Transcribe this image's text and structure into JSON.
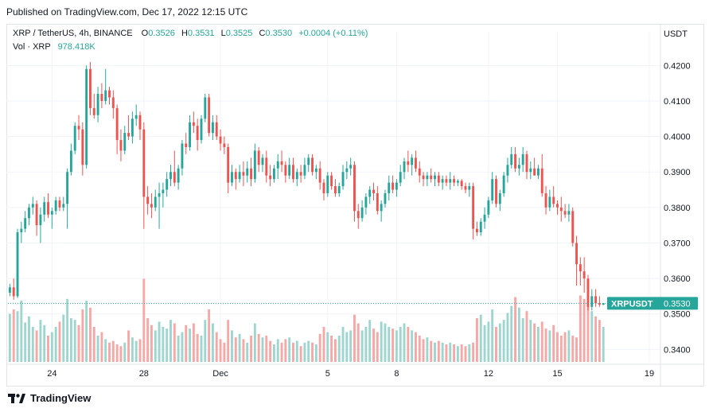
{
  "header": {
    "published": "Published on TradingView.com, Dec 17, 2022 12:15 UTC"
  },
  "legend": {
    "symbol": "XRP / TetherUS, 4h, BINANCE",
    "open_label": "O",
    "open": "0.3526",
    "high_label": "H",
    "high": "0.3531",
    "low_label": "L",
    "low": "0.3525",
    "close_label": "C",
    "close": "0.3530",
    "change": "+0.0004 (+0.11%)",
    "vol_label": "Vol · XRP",
    "vol_value": "978.418K"
  },
  "price_tag": {
    "symbol": "XRPUSDT",
    "value": "0.3530"
  },
  "footer": {
    "brand": "TradingView"
  },
  "colors": {
    "up": "#26a69a",
    "down": "#ef5350",
    "up_vol": "#9fd5cf",
    "down_vol": "#f5a8a6",
    "grid": "#f0f3fa"
  },
  "chart_data": {
    "type": "candlestick",
    "currency": "USDT",
    "y_ticks": [
      "0.4200",
      "0.4100",
      "0.4000",
      "0.3900",
      "0.3800",
      "0.3700",
      "0.3600",
      "0.3500",
      "0.3400"
    ],
    "ylim": [
      0.3365,
      0.425
    ],
    "x_ticks": [
      {
        "label": "24",
        "index": 11
      },
      {
        "label": "28",
        "index": 35
      },
      {
        "label": "Dec",
        "index": 55
      },
      {
        "label": "5",
        "index": 83
      },
      {
        "label": "8",
        "index": 101
      },
      {
        "label": "12",
        "index": 125
      },
      {
        "label": "15",
        "index": 143
      },
      {
        "label": "19",
        "index": 167
      }
    ],
    "x_count": 170,
    "last_price": 0.353,
    "candles": [
      [
        0.356,
        0.3585,
        0.355,
        0.3575
      ],
      [
        0.3575,
        0.36,
        0.354,
        0.355
      ],
      [
        0.355,
        0.374,
        0.3545,
        0.373
      ],
      [
        0.373,
        0.376,
        0.37,
        0.374
      ],
      [
        0.374,
        0.379,
        0.373,
        0.377
      ],
      [
        0.377,
        0.381,
        0.375,
        0.38
      ],
      [
        0.38,
        0.383,
        0.378,
        0.381
      ],
      [
        0.381,
        0.382,
        0.372,
        0.375
      ],
      [
        0.375,
        0.38,
        0.37,
        0.378
      ],
      [
        0.378,
        0.383,
        0.376,
        0.3815
      ],
      [
        0.3815,
        0.384,
        0.377,
        0.378
      ],
      [
        0.378,
        0.38,
        0.374,
        0.379
      ],
      [
        0.379,
        0.383,
        0.378,
        0.382
      ],
      [
        0.382,
        0.383,
        0.379,
        0.38
      ],
      [
        0.38,
        0.383,
        0.379,
        0.381
      ],
      [
        0.381,
        0.391,
        0.374,
        0.39
      ],
      [
        0.39,
        0.398,
        0.389,
        0.396
      ],
      [
        0.396,
        0.404,
        0.395,
        0.403
      ],
      [
        0.403,
        0.406,
        0.399,
        0.402
      ],
      [
        0.402,
        0.404,
        0.389,
        0.392
      ],
      [
        0.392,
        0.42,
        0.391,
        0.419
      ],
      [
        0.419,
        0.421,
        0.406,
        0.408
      ],
      [
        0.408,
        0.412,
        0.405,
        0.406
      ],
      [
        0.406,
        0.414,
        0.404,
        0.412
      ],
      [
        0.412,
        0.415,
        0.408,
        0.41
      ],
      [
        0.41,
        0.419,
        0.409,
        0.413
      ],
      [
        0.413,
        0.414,
        0.409,
        0.411
      ],
      [
        0.411,
        0.413,
        0.405,
        0.408
      ],
      [
        0.408,
        0.409,
        0.395,
        0.399
      ],
      [
        0.399,
        0.402,
        0.393,
        0.396
      ],
      [
        0.396,
        0.403,
        0.395,
        0.401
      ],
      [
        0.401,
        0.406,
        0.399,
        0.4
      ],
      [
        0.4,
        0.407,
        0.398,
        0.405
      ],
      [
        0.405,
        0.409,
        0.403,
        0.406
      ],
      [
        0.406,
        0.407,
        0.399,
        0.402
      ],
      [
        0.402,
        0.404,
        0.374,
        0.383
      ],
      [
        0.383,
        0.386,
        0.378,
        0.381
      ],
      [
        0.381,
        0.384,
        0.377,
        0.38
      ],
      [
        0.38,
        0.385,
        0.379,
        0.383
      ],
      [
        0.383,
        0.387,
        0.374,
        0.384
      ],
      [
        0.384,
        0.387,
        0.38,
        0.385
      ],
      [
        0.385,
        0.39,
        0.383,
        0.388
      ],
      [
        0.388,
        0.392,
        0.386,
        0.39
      ],
      [
        0.39,
        0.396,
        0.386,
        0.387
      ],
      [
        0.387,
        0.392,
        0.385,
        0.391
      ],
      [
        0.391,
        0.399,
        0.389,
        0.398
      ],
      [
        0.398,
        0.401,
        0.395,
        0.397
      ],
      [
        0.397,
        0.406,
        0.396,
        0.404
      ],
      [
        0.404,
        0.407,
        0.401,
        0.403
      ],
      [
        0.403,
        0.405,
        0.396,
        0.399
      ],
      [
        0.399,
        0.406,
        0.398,
        0.405
      ],
      [
        0.405,
        0.412,
        0.404,
        0.411
      ],
      [
        0.411,
        0.412,
        0.4,
        0.401
      ],
      [
        0.401,
        0.406,
        0.399,
        0.404
      ],
      [
        0.404,
        0.406,
        0.399,
        0.4
      ],
      [
        0.4,
        0.402,
        0.396,
        0.398
      ],
      [
        0.398,
        0.4,
        0.395,
        0.397
      ],
      [
        0.397,
        0.398,
        0.384,
        0.387
      ],
      [
        0.387,
        0.392,
        0.386,
        0.39
      ],
      [
        0.39,
        0.391,
        0.385,
        0.388
      ],
      [
        0.388,
        0.392,
        0.387,
        0.39
      ],
      [
        0.39,
        0.393,
        0.386,
        0.389
      ],
      [
        0.389,
        0.393,
        0.387,
        0.391
      ],
      [
        0.391,
        0.394,
        0.386,
        0.388
      ],
      [
        0.388,
        0.398,
        0.387,
        0.396
      ],
      [
        0.396,
        0.397,
        0.39,
        0.392
      ],
      [
        0.392,
        0.395,
        0.39,
        0.394
      ],
      [
        0.394,
        0.396,
        0.387,
        0.389
      ],
      [
        0.389,
        0.392,
        0.386,
        0.388
      ],
      [
        0.388,
        0.392,
        0.387,
        0.391
      ],
      [
        0.391,
        0.395,
        0.388,
        0.393
      ],
      [
        0.393,
        0.396,
        0.39,
        0.392
      ],
      [
        0.392,
        0.393,
        0.387,
        0.389
      ],
      [
        0.389,
        0.394,
        0.388,
        0.392
      ],
      [
        0.392,
        0.394,
        0.387,
        0.388
      ],
      [
        0.388,
        0.391,
        0.386,
        0.39
      ],
      [
        0.39,
        0.392,
        0.387,
        0.389
      ],
      [
        0.389,
        0.394,
        0.388,
        0.392
      ],
      [
        0.392,
        0.395,
        0.39,
        0.394
      ],
      [
        0.394,
        0.395,
        0.389,
        0.39
      ],
      [
        0.39,
        0.392,
        0.388,
        0.391
      ],
      [
        0.391,
        0.393,
        0.385,
        0.387
      ],
      [
        0.387,
        0.388,
        0.382,
        0.384
      ],
      [
        0.384,
        0.39,
        0.383,
        0.389
      ],
      [
        0.389,
        0.39,
        0.385,
        0.386
      ],
      [
        0.386,
        0.388,
        0.383,
        0.384
      ],
      [
        0.384,
        0.387,
        0.383,
        0.386
      ],
      [
        0.386,
        0.392,
        0.385,
        0.39
      ],
      [
        0.39,
        0.393,
        0.388,
        0.391
      ],
      [
        0.391,
        0.394,
        0.389,
        0.392
      ],
      [
        0.392,
        0.393,
        0.376,
        0.379
      ],
      [
        0.379,
        0.381,
        0.374,
        0.377
      ],
      [
        0.377,
        0.382,
        0.376,
        0.38
      ],
      [
        0.38,
        0.384,
        0.378,
        0.383
      ],
      [
        0.383,
        0.386,
        0.381,
        0.385
      ],
      [
        0.385,
        0.387,
        0.382,
        0.384
      ],
      [
        0.384,
        0.386,
        0.378,
        0.379
      ],
      [
        0.379,
        0.382,
        0.376,
        0.381
      ],
      [
        0.381,
        0.385,
        0.38,
        0.384
      ],
      [
        0.384,
        0.389,
        0.382,
        0.387
      ],
      [
        0.387,
        0.389,
        0.384,
        0.385
      ],
      [
        0.385,
        0.388,
        0.383,
        0.387
      ],
      [
        0.387,
        0.392,
        0.386,
        0.39
      ],
      [
        0.39,
        0.394,
        0.388,
        0.393
      ],
      [
        0.393,
        0.396,
        0.39,
        0.392
      ],
      [
        0.392,
        0.395,
        0.389,
        0.394
      ],
      [
        0.394,
        0.396,
        0.39,
        0.391
      ],
      [
        0.391,
        0.393,
        0.387,
        0.389
      ],
      [
        0.389,
        0.39,
        0.386,
        0.388
      ],
      [
        0.388,
        0.39,
        0.386,
        0.389
      ],
      [
        0.389,
        0.391,
        0.387,
        0.388
      ],
      [
        0.388,
        0.39,
        0.386,
        0.389
      ],
      [
        0.389,
        0.39,
        0.386,
        0.387
      ],
      [
        0.387,
        0.389,
        0.385,
        0.388
      ],
      [
        0.388,
        0.389,
        0.386,
        0.387
      ],
      [
        0.387,
        0.39,
        0.385,
        0.388
      ],
      [
        0.388,
        0.389,
        0.386,
        0.387
      ],
      [
        0.387,
        0.388,
        0.386,
        0.3875
      ],
      [
        0.3875,
        0.388,
        0.385,
        0.386
      ],
      [
        0.386,
        0.387,
        0.384,
        0.385
      ],
      [
        0.385,
        0.387,
        0.383,
        0.386
      ],
      [
        0.386,
        0.387,
        0.371,
        0.374
      ],
      [
        0.374,
        0.376,
        0.372,
        0.373
      ],
      [
        0.373,
        0.377,
        0.372,
        0.376
      ],
      [
        0.376,
        0.38,
        0.374,
        0.378
      ],
      [
        0.378,
        0.383,
        0.377,
        0.382
      ],
      [
        0.382,
        0.39,
        0.381,
        0.388
      ],
      [
        0.388,
        0.389,
        0.38,
        0.381
      ],
      [
        0.381,
        0.385,
        0.379,
        0.384
      ],
      [
        0.384,
        0.39,
        0.383,
        0.389
      ],
      [
        0.389,
        0.394,
        0.387,
        0.392
      ],
      [
        0.392,
        0.397,
        0.391,
        0.395
      ],
      [
        0.395,
        0.397,
        0.39,
        0.391
      ],
      [
        0.391,
        0.394,
        0.389,
        0.392
      ],
      [
        0.392,
        0.397,
        0.39,
        0.395
      ],
      [
        0.395,
        0.396,
        0.388,
        0.39
      ],
      [
        0.39,
        0.393,
        0.388,
        0.391
      ],
      [
        0.391,
        0.394,
        0.389,
        0.389
      ],
      [
        0.389,
        0.392,
        0.388,
        0.391
      ],
      [
        0.391,
        0.395,
        0.383,
        0.384
      ],
      [
        0.384,
        0.386,
        0.378,
        0.38
      ],
      [
        0.38,
        0.385,
        0.379,
        0.383
      ],
      [
        0.383,
        0.386,
        0.38,
        0.381
      ],
      [
        0.381,
        0.382,
        0.378,
        0.38
      ],
      [
        0.38,
        0.383,
        0.376,
        0.379
      ],
      [
        0.379,
        0.381,
        0.377,
        0.378
      ],
      [
        0.378,
        0.381,
        0.376,
        0.379
      ],
      [
        0.379,
        0.38,
        0.369,
        0.37
      ],
      [
        0.37,
        0.372,
        0.358,
        0.364
      ],
      [
        0.364,
        0.366,
        0.358,
        0.362
      ],
      [
        0.362,
        0.366,
        0.356,
        0.36
      ],
      [
        0.36,
        0.361,
        0.351,
        0.352
      ],
      [
        0.352,
        0.357,
        0.351,
        0.355
      ],
      [
        0.355,
        0.357,
        0.352,
        0.353
      ],
      [
        0.353,
        0.355,
        0.352,
        0.3526
      ],
      [
        0.3526,
        0.3531,
        0.3525,
        0.353
      ]
    ],
    "volumes": [
      0.55,
      0.6,
      0.58,
      0.7,
      0.45,
      0.52,
      0.4,
      0.36,
      0.48,
      0.42,
      0.3,
      0.34,
      0.4,
      0.46,
      0.54,
      0.72,
      0.5,
      0.48,
      0.42,
      0.6,
      0.7,
      0.62,
      0.4,
      0.3,
      0.34,
      0.26,
      0.22,
      0.24,
      0.2,
      0.18,
      0.22,
      0.36,
      0.28,
      0.24,
      0.26,
      0.95,
      0.5,
      0.42,
      0.36,
      0.46,
      0.4,
      0.38,
      0.48,
      0.44,
      0.3,
      0.34,
      0.42,
      0.38,
      0.44,
      0.32,
      0.3,
      0.48,
      0.6,
      0.44,
      0.34,
      0.26,
      0.22,
      0.48,
      0.36,
      0.28,
      0.32,
      0.26,
      0.22,
      0.3,
      0.44,
      0.32,
      0.28,
      0.3,
      0.24,
      0.2,
      0.26,
      0.22,
      0.26,
      0.28,
      0.22,
      0.24,
      0.18,
      0.22,
      0.24,
      0.22,
      0.2,
      0.32,
      0.4,
      0.34,
      0.3,
      0.26,
      0.3,
      0.4,
      0.34,
      0.36,
      0.54,
      0.44,
      0.36,
      0.4,
      0.48,
      0.38,
      0.34,
      0.46,
      0.44,
      0.4,
      0.38,
      0.36,
      0.4,
      0.44,
      0.4,
      0.36,
      0.34,
      0.3,
      0.26,
      0.28,
      0.24,
      0.22,
      0.24,
      0.22,
      0.2,
      0.22,
      0.2,
      0.18,
      0.2,
      0.18,
      0.2,
      0.22,
      0.5,
      0.54,
      0.42,
      0.46,
      0.6,
      0.4,
      0.44,
      0.48,
      0.56,
      0.64,
      0.74,
      0.62,
      0.5,
      0.58,
      0.48,
      0.44,
      0.4,
      0.46,
      0.38,
      0.36,
      0.42,
      0.34,
      0.3,
      0.34,
      0.36,
      0.3,
      0.28,
      0.76,
      0.72,
      0.64,
      0.58,
      0.52,
      0.48,
      0.4,
      0.3
    ]
  }
}
